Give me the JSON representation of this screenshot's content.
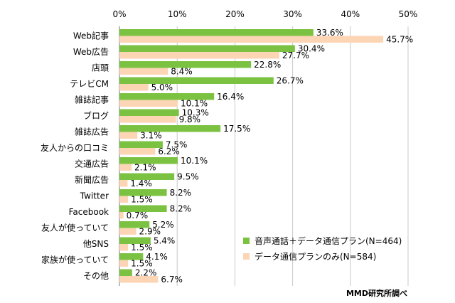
{
  "chart_data": {
    "type": "bar",
    "orientation": "horizontal",
    "categories": [
      "Web記事",
      "Web広告",
      "店頭",
      "テレビCM",
      "雑誌記事",
      "ブログ",
      "雑誌広告",
      "友人からの口コミ",
      "交通広告",
      "新聞広告",
      "Twitter",
      "Facebook",
      "友人が使っていて",
      "他SNS",
      "家族が使っていて",
      "その他"
    ],
    "series": [
      {
        "name": "音声通話＋データ通信プラン(N=464)",
        "color": "#7cc242",
        "values": [
          33.6,
          30.4,
          22.8,
          26.7,
          16.4,
          10.3,
          17.5,
          7.5,
          10.1,
          9.5,
          8.2,
          8.2,
          5.2,
          5.4,
          4.1,
          2.2
        ],
        "labels": [
          "33.6%",
          "30.4%",
          "22.8%",
          "26.7%",
          "16.4%",
          "10.3%",
          "17.5%",
          "7.5%",
          "10.1%",
          "9.5%",
          "8.2%",
          "8.2%",
          "5.2%",
          "5.4%",
          "4.1%",
          "2.2%"
        ]
      },
      {
        "name": "データ通信プランのみ(N=584)",
        "color": "#fcd5b5",
        "values": [
          45.7,
          27.7,
          8.4,
          5.0,
          10.1,
          9.8,
          3.1,
          6.2,
          2.1,
          1.4,
          1.5,
          0.7,
          2.9,
          1.5,
          1.5,
          6.7
        ],
        "labels": [
          "45.7%",
          "27.7%",
          "8.4%",
          "5.0%",
          "10.1%",
          "9.8%",
          "3.1%",
          "6.2%",
          "2.1%",
          "1.4%",
          "1.5%",
          "0.7%",
          "2.9%",
          "1.5%",
          "1.5%",
          "6.7%"
        ]
      }
    ],
    "xlim": [
      0,
      50
    ],
    "ticks": [
      0,
      10,
      20,
      30,
      40,
      50
    ],
    "tick_labels": [
      "0%",
      "10%",
      "20%",
      "30%",
      "40%",
      "50%"
    ],
    "gridlines": true,
    "legend_position": "bottom-right",
    "source": "MMD研究所調べ"
  }
}
